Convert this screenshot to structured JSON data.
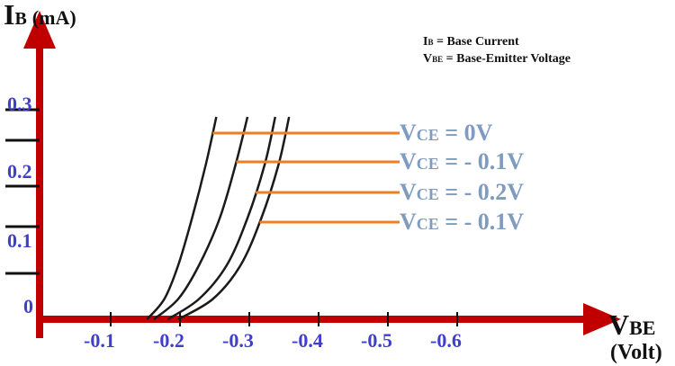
{
  "colors": {
    "axis": "#c00000",
    "curve": "#1a1a1a",
    "leader": "#f07f22",
    "tick_label": "#3f3fc9",
    "curve_label": "#7f9bbf"
  },
  "chart_data": {
    "type": "line",
    "y_axis": {
      "symbol": "I",
      "sub": "B",
      "unit": "(mA)",
      "ticks": [
        "0.3",
        "0.2",
        "0.1",
        "0"
      ]
    },
    "x_axis": {
      "symbol": "V",
      "sub": "BE",
      "unit": "(Volt)",
      "ticks": [
        "-0.1",
        "-0.2",
        "-0.3",
        "-0.4",
        "-0.5",
        "-0.6"
      ]
    },
    "xlim": [
      0,
      -0.7
    ],
    "ylim": [
      0,
      0.3
    ],
    "legend": [
      {
        "sym": "I",
        "sub": "B",
        "text": " = Base Current"
      },
      {
        "sym": "V",
        "sub": "BE",
        "text": " = Base-Emitter Voltage"
      }
    ],
    "series": [
      {
        "name": "VCE = 0V",
        "sym": "V",
        "sub": "CE",
        "text": " = 0V",
        "x": [
          -0.155,
          -0.18,
          -0.2,
          -0.22,
          -0.24,
          -0.255
        ],
        "y": [
          0,
          0.03,
          0.08,
          0.15,
          0.23,
          0.3
        ]
      },
      {
        "name": "VCE = - 0.1V",
        "sym": "V",
        "sub": "CE",
        "text": " = - 0.1V",
        "x": [
          -0.165,
          -0.2,
          -0.23,
          -0.26,
          -0.283,
          -0.3
        ],
        "y": [
          0,
          0.03,
          0.08,
          0.15,
          0.23,
          0.3
        ]
      },
      {
        "name": "VCE = - 0.2V",
        "sym": "V",
        "sub": "CE",
        "text": " = - 0.2V",
        "x": [
          -0.185,
          -0.23,
          -0.27,
          -0.3,
          -0.325,
          -0.34
        ],
        "y": [
          0,
          0.03,
          0.08,
          0.15,
          0.23,
          0.3
        ]
      },
      {
        "name": "VCE = - 0.1V",
        "sym": "V",
        "sub": "CE",
        "text": " = - 0.1V",
        "x": [
          -0.2,
          -0.25,
          -0.29,
          -0.32,
          -0.345,
          -0.36
        ],
        "y": [
          0,
          0.03,
          0.08,
          0.15,
          0.23,
          0.3
        ]
      }
    ]
  }
}
